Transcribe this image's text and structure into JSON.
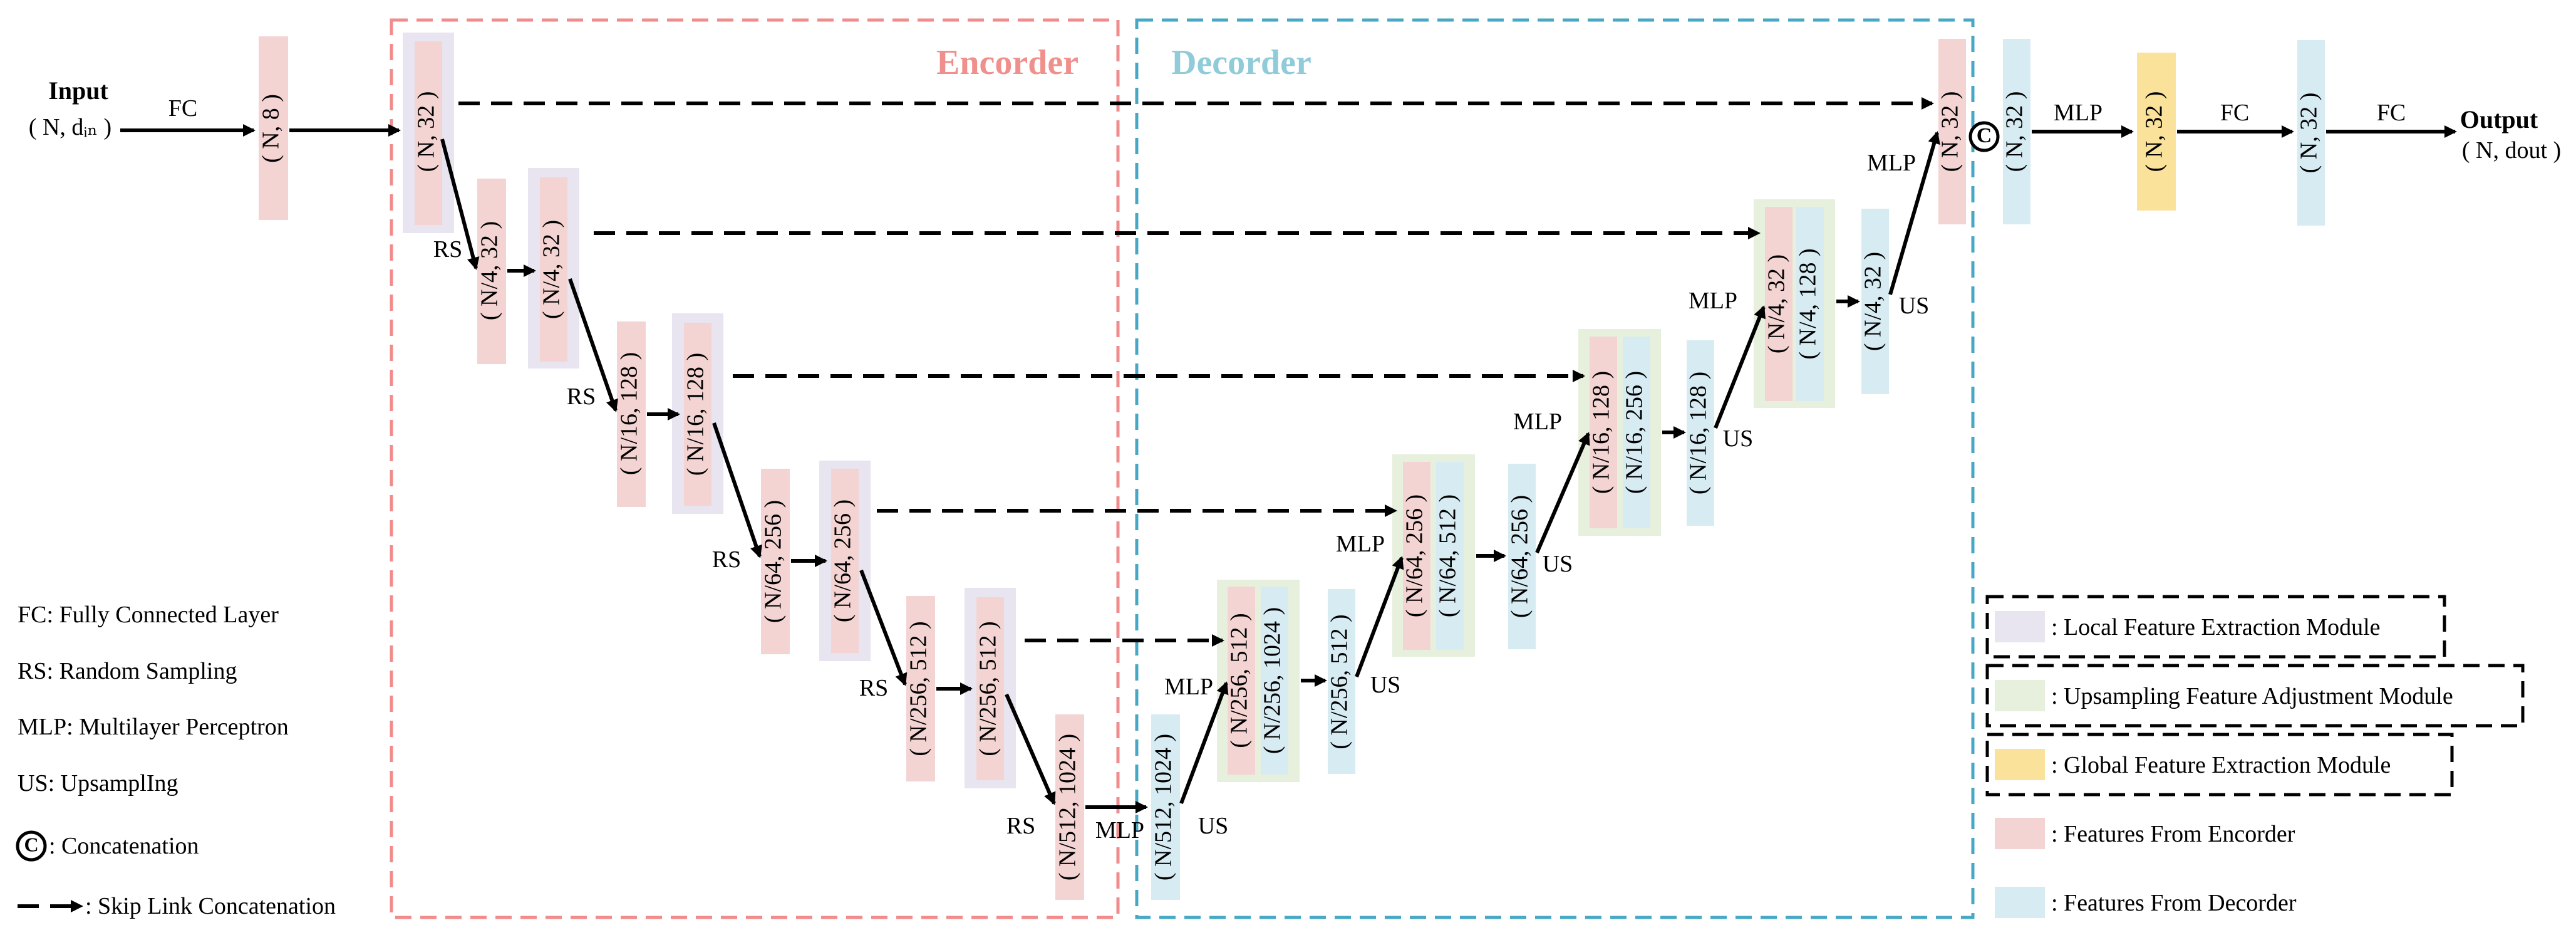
{
  "input": {
    "title": "Input",
    "shape": "( N, dᵢₙ )"
  },
  "output": {
    "title": "Output",
    "shape": "( N, dout )"
  },
  "regions": {
    "encoder": "Encorder",
    "decoder": "Decorder"
  },
  "ops": {
    "fc": "FC",
    "rs": "RS",
    "mlp": "MLP",
    "us": "US",
    "concat": "C"
  },
  "colors": {
    "encoder_feature": "#f3d4d3",
    "decoder_feature": "#d7ebf2",
    "local_module": "#e8e4f0",
    "upsampling_module": "#e7f0dc",
    "global_module": "#fbe29a",
    "encoder_border": "#f28b8b",
    "decoder_border": "#47a8c5"
  },
  "blocks": {
    "input_fc": "( N, 8 )",
    "enc1": "( N, 32 )",
    "enc1_rs": "( N/4, 32 )",
    "enc2": "( N/4, 32 )",
    "enc2_rs": "( N/16, 128 )",
    "enc3": "( N/16, 128 )",
    "enc3_rs": "( N/64, 256 )",
    "enc4": "( N/64, 256 )",
    "enc4_rs": "( N/256, 512 )",
    "enc5": "( N/256, 512 )",
    "enc5_rs": "( N/512, 1024 )",
    "bottleneck": "( N/512, 1024 )",
    "dec1_skip": "( N/256, 512 )",
    "dec1_up": "( N/256, 1024 )",
    "dec1_out": "( N/256, 512 )",
    "dec2_skip": "( N/64, 256 )",
    "dec2_up": "( N/64, 512 )",
    "dec2_out": "( N/64, 256 )",
    "dec3_skip": "( N/16, 128 )",
    "dec3_up": "( N/16, 256 )",
    "dec3_out": "( N/16, 128 )",
    "dec4_skip": "( N/4, 32 )",
    "dec4_up": "( N/4, 128 )",
    "dec4_out": "( N/4, 32 )",
    "concat_enc": "( N, 32 )",
    "concat_dec": "( N, 32 )",
    "global": "( N, 32 )",
    "final": "( N, 32 )"
  },
  "abbreviations": [
    "FC: Fully Connected Layer",
    "RS: Random Sampling",
    "MLP: Multilayer Perceptron",
    "US: UpsamplIng",
    ": Concatenation",
    ": Skip Link Concatenation"
  ],
  "legend": [
    ": Local Feature Extraction Module",
    ": Upsampling Feature Adjustment Module",
    ": Global Feature Extraction Module",
    ": Features From Encorder",
    ": Features From Decorder"
  ]
}
